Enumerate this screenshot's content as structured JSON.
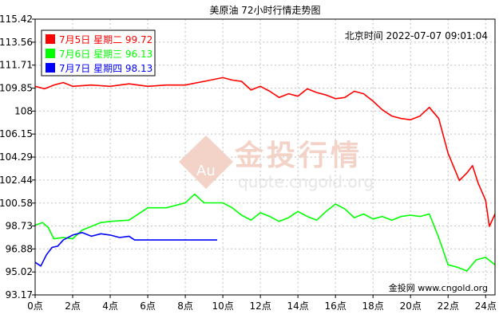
{
  "chart_data": {
    "type": "line",
    "title": "美原油 72小时行情走势图",
    "timestamp": "北京时间 2022-07-07 09:01:04",
    "watermark": {
      "brand": "金投行情",
      "url": "quote.cngold.org",
      "logo_text": "Au"
    },
    "credit": "金投网 www.cngold.org",
    "y_ticks": [
      115.42,
      113.56,
      111.71,
      109.85,
      108,
      106.15,
      104.29,
      102.44,
      100.58,
      98.73,
      96.88,
      95.02,
      93.17
    ],
    "y_tick_labels": [
      "115.42",
      "113.56",
      "111.71",
      "109.85",
      "108",
      "106.15",
      "104.29",
      "102.44",
      "100.58",
      "98.73",
      "96.88",
      "95.02",
      "93.17"
    ],
    "ylim": [
      93.17,
      115.42
    ],
    "x_ticks": [
      0,
      2,
      4,
      6,
      8,
      10,
      12,
      14,
      16,
      18,
      20,
      22,
      24
    ],
    "x_tick_labels": [
      "0点",
      "2点",
      "4点",
      "6点",
      "8点",
      "10点",
      "12点",
      "14点",
      "16点",
      "18点",
      "20点",
      "22点",
      "24点"
    ],
    "xlim": [
      0,
      24.5
    ],
    "grid": true,
    "legend_position": "top-left",
    "series": [
      {
        "name": "7月5日 星期二",
        "legend_value": "99.72",
        "color": "#ff0000",
        "points": [
          [
            0,
            110.0
          ],
          [
            0.5,
            109.8
          ],
          [
            1.0,
            110.1
          ],
          [
            1.5,
            110.3
          ],
          [
            2.0,
            110.0
          ],
          [
            3.0,
            110.1
          ],
          [
            4.0,
            110.0
          ],
          [
            5.0,
            110.2
          ],
          [
            6.0,
            110.0
          ],
          [
            7.0,
            110.1
          ],
          [
            8.0,
            110.1
          ],
          [
            9.0,
            110.4
          ],
          [
            10.0,
            110.7
          ],
          [
            10.5,
            110.5
          ],
          [
            11.0,
            110.4
          ],
          [
            11.5,
            109.7
          ],
          [
            12.0,
            110.0
          ],
          [
            12.5,
            109.6
          ],
          [
            13.0,
            109.1
          ],
          [
            13.5,
            109.4
          ],
          [
            14.0,
            109.2
          ],
          [
            14.5,
            109.8
          ],
          [
            15.0,
            109.5
          ],
          [
            15.5,
            109.3
          ],
          [
            16.0,
            109.0
          ],
          [
            16.5,
            109.1
          ],
          [
            17.0,
            109.6
          ],
          [
            17.5,
            109.4
          ],
          [
            18.0,
            108.8
          ],
          [
            18.5,
            108.1
          ],
          [
            19.0,
            107.6
          ],
          [
            19.5,
            107.4
          ],
          [
            20.0,
            107.3
          ],
          [
            20.5,
            107.6
          ],
          [
            21.0,
            108.3
          ],
          [
            21.5,
            107.4
          ],
          [
            22.0,
            104.6
          ],
          [
            22.3,
            103.5
          ],
          [
            22.6,
            102.4
          ],
          [
            23.0,
            103.0
          ],
          [
            23.3,
            103.6
          ],
          [
            23.6,
            102.2
          ],
          [
            24.0,
            100.8
          ],
          [
            24.2,
            98.7
          ],
          [
            24.5,
            99.7
          ]
        ]
      },
      {
        "name": "7月6日 星期三",
        "legend_value": "96.13",
        "color": "#00ff00",
        "points": [
          [
            0,
            98.8
          ],
          [
            0.4,
            99.0
          ],
          [
            0.7,
            98.6
          ],
          [
            1.0,
            97.7
          ],
          [
            1.5,
            97.8
          ],
          [
            2.0,
            97.7
          ],
          [
            2.5,
            98.4
          ],
          [
            3.0,
            98.7
          ],
          [
            3.5,
            99.0
          ],
          [
            4.0,
            99.1
          ],
          [
            5.0,
            99.2
          ],
          [
            6.0,
            100.2
          ],
          [
            6.5,
            100.2
          ],
          [
            7.0,
            100.2
          ],
          [
            8.0,
            100.6
          ],
          [
            8.5,
            101.3
          ],
          [
            9.0,
            100.6
          ],
          [
            10.0,
            100.6
          ],
          [
            10.5,
            100.2
          ],
          [
            11.0,
            99.6
          ],
          [
            11.5,
            99.2
          ],
          [
            12.0,
            99.8
          ],
          [
            12.5,
            99.5
          ],
          [
            13.0,
            99.1
          ],
          [
            13.5,
            99.4
          ],
          [
            14.0,
            99.9
          ],
          [
            14.5,
            99.5
          ],
          [
            15.0,
            99.2
          ],
          [
            15.5,
            99.9
          ],
          [
            16.0,
            100.5
          ],
          [
            16.5,
            100.1
          ],
          [
            17.0,
            99.4
          ],
          [
            17.5,
            99.7
          ],
          [
            18.0,
            99.3
          ],
          [
            18.5,
            99.5
          ],
          [
            19.0,
            99.2
          ],
          [
            19.5,
            99.5
          ],
          [
            20.0,
            99.6
          ],
          [
            20.5,
            99.5
          ],
          [
            21.0,
            99.7
          ],
          [
            21.5,
            97.8
          ],
          [
            22.0,
            95.6
          ],
          [
            22.5,
            95.4
          ],
          [
            23.0,
            95.1
          ],
          [
            23.5,
            96.0
          ],
          [
            24.0,
            96.2
          ],
          [
            24.5,
            95.6
          ]
        ]
      },
      {
        "name": "7月7日 星期四",
        "legend_value": "98.13",
        "color": "#0000ff",
        "points": [
          [
            0,
            95.8
          ],
          [
            0.3,
            95.5
          ],
          [
            0.6,
            96.4
          ],
          [
            0.9,
            97.0
          ],
          [
            1.2,
            97.1
          ],
          [
            1.5,
            97.6
          ],
          [
            2.0,
            98.0
          ],
          [
            2.5,
            98.2
          ],
          [
            3.0,
            97.9
          ],
          [
            3.5,
            98.1
          ],
          [
            4.0,
            98.0
          ],
          [
            4.5,
            97.8
          ],
          [
            5.0,
            97.9
          ],
          [
            5.3,
            97.6
          ],
          [
            6.0,
            97.6
          ],
          [
            7.0,
            97.6
          ],
          [
            8.0,
            97.6
          ],
          [
            9.0,
            97.6
          ],
          [
            9.7,
            97.6
          ]
        ]
      }
    ]
  }
}
